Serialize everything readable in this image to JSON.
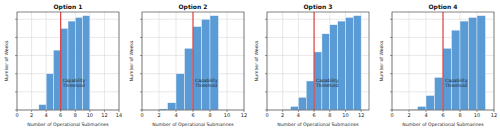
{
  "chart_data": [
    {
      "type": "histogram",
      "title": "Option 1",
      "x_label": "Number of Operational Submarines",
      "y_label": "Number of Weeks",
      "bins": [
        2,
        3,
        4,
        5,
        6,
        7,
        8,
        9,
        10
      ],
      "values": [
        20,
        150,
        1000,
        1650,
        2250,
        2450,
        2550,
        2600
      ],
      "color": "#5b9bd5",
      "xlim": [
        0,
        14
      ],
      "xticks": [
        0,
        2,
        4,
        6,
        8,
        10,
        12,
        14
      ],
      "ylim": [
        0,
        2700
      ],
      "yticks": [
        0,
        500,
        1000,
        1500,
        2000,
        2500
      ],
      "grid": true,
      "tick_labels": "x",
      "threshold": {
        "value": 6,
        "label": "Capability Threshold",
        "color": "#e02020"
      }
    },
    {
      "type": "histogram",
      "title": "Option 2",
      "x_label": "Number of Operational Submarines",
      "y_label": "Number of Weeks",
      "bins": [
        2,
        3,
        4,
        5,
        6,
        7,
        8,
        9
      ],
      "values": [
        30,
        200,
        1000,
        1700,
        2300,
        2500,
        2600
      ],
      "color": "#5b9bd5",
      "xlim": [
        0,
        12
      ],
      "xticks": [
        0,
        2,
        4,
        6,
        8,
        10,
        12
      ],
      "ylim": [
        0,
        2700
      ],
      "yticks": [
        0,
        500,
        1000,
        1500,
        2000,
        2500
      ],
      "grid": true,
      "tick_labels": "x",
      "threshold": {
        "value": 6,
        "label": "Capability Threshold",
        "color": "#e02020"
      }
    },
    {
      "type": "histogram",
      "title": "Option 3",
      "x_label": "Number of Operational Submarines",
      "y_label": "Number of Weeks",
      "bins": [
        2,
        3,
        4,
        5,
        6,
        7,
        8,
        9,
        10,
        11,
        12
      ],
      "values": [
        20,
        100,
        350,
        800,
        1600,
        2100,
        2350,
        2450,
        2550,
        2600
      ],
      "color": "#5b9bd5",
      "xlim": [
        0,
        13
      ],
      "xticks": [
        0,
        2,
        4,
        6,
        8,
        10,
        12
      ],
      "ylim": [
        0,
        2700
      ],
      "yticks": [
        0,
        500,
        1000,
        1500,
        2000,
        2500
      ],
      "grid": true,
      "tick_labels": "x",
      "threshold": {
        "value": 6,
        "label": "Capability Threshold",
        "color": "#e02020"
      }
    },
    {
      "type": "histogram",
      "title": "Option 4",
      "x_label": "Number of Operational Submarines",
      "y_label": "Number of Weeks",
      "bins": [
        2,
        3,
        4,
        5,
        6,
        7,
        8,
        9,
        10,
        11
      ],
      "values": [
        20,
        100,
        400,
        900,
        1700,
        2200,
        2450,
        2550,
        2600
      ],
      "color": "#5b9bd5",
      "xlim": [
        0,
        12
      ],
      "xticks": [
        0,
        2,
        4,
        6,
        8,
        10,
        12
      ],
      "ylim": [
        0,
        2700
      ],
      "yticks": [
        0,
        500,
        1000,
        1500,
        2000,
        2500
      ],
      "grid": true,
      "tick_labels": "x",
      "threshold": {
        "value": 6,
        "label": "Capability Threshold",
        "color": "#e02020"
      }
    }
  ]
}
